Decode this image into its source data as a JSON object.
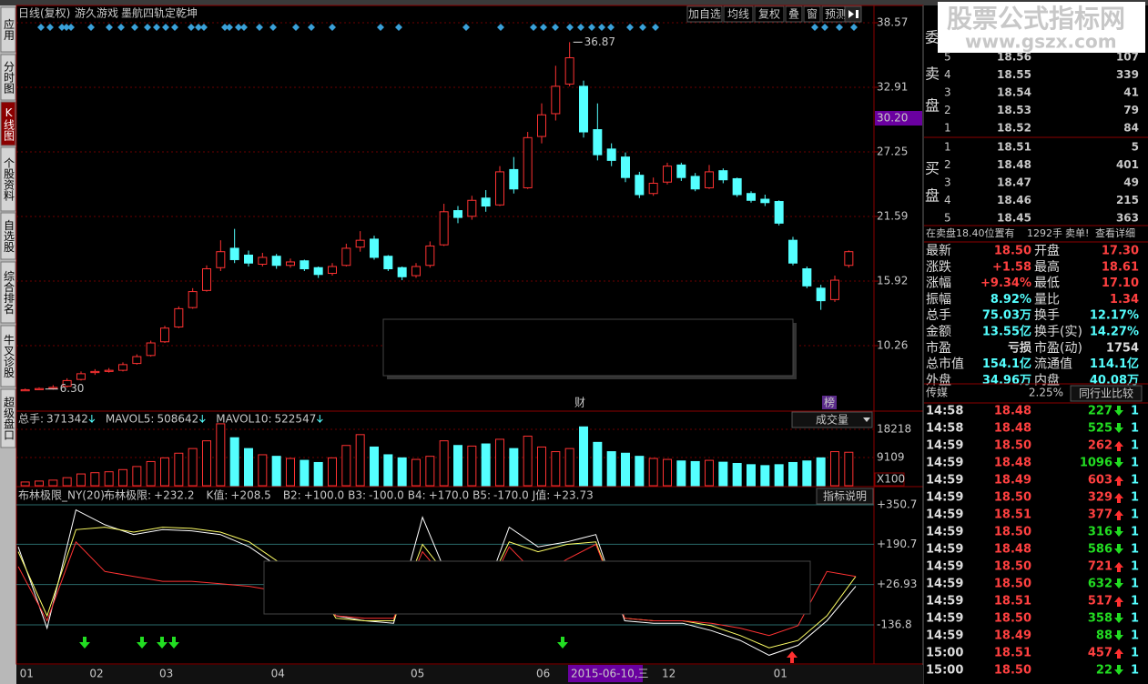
{
  "tabs": [
    "应用",
    "分时图",
    "K线图",
    "个股资料",
    "自选股",
    "综合排名",
    "牛叉诊股",
    "超级盘口"
  ],
  "header": {
    "mode": "日线(复权)",
    "stock": "游久游戏",
    "formula": "墨航四轨定乾坤",
    "buttons": [
      "加自选",
      "均线",
      "复权",
      "叠",
      "窗",
      "预测"
    ]
  },
  "chart_data": [
    {
      "type": "candlestick",
      "categories": [
        "01",
        null,
        null,
        null,
        null,
        "02",
        null,
        null,
        null,
        null,
        "03",
        null,
        null,
        null,
        null,
        null,
        null,
        null,
        "04",
        null,
        null,
        null,
        null,
        null,
        null,
        null,
        null,
        null,
        "05",
        null,
        null,
        null,
        null,
        null,
        null,
        null,
        null,
        "06",
        null,
        null,
        null,
        null,
        null,
        null,
        null,
        null,
        "12",
        null,
        null,
        null,
        null,
        null,
        null,
        null,
        "01",
        null,
        null,
        null,
        null,
        null
      ],
      "open": [
        6.3,
        6.4,
        6.5,
        6.7,
        7.3,
        7.9,
        8.0,
        8.1,
        8.7,
        9.4,
        10.6,
        11.9,
        13.6,
        15.1,
        17.1,
        18.8,
        18.2,
        17.4,
        18.1,
        17.3,
        17.7,
        17.1,
        16.6,
        17.3,
        18.9,
        19.6,
        18.1,
        17.1,
        16.4,
        17.3,
        19.1,
        22.1,
        21.6,
        23.2,
        22.6,
        25.7,
        24.1,
        28.6,
        30.6,
        33.2,
        33.0,
        29.2,
        27.5,
        26.8,
        25.2,
        23.6,
        24.6,
        26.1,
        25.1,
        24.1,
        25.6,
        24.9,
        23.6,
        23.1,
        22.9,
        19.5,
        17.0,
        15.3,
        14.3,
        17.3
      ],
      "high": [
        6.5,
        6.6,
        6.8,
        7.4,
        8.0,
        8.2,
        8.3,
        8.8,
        9.5,
        10.7,
        12.0,
        13.7,
        15.3,
        17.3,
        19.5,
        20.5,
        18.6,
        18.4,
        18.3,
        17.9,
        17.8,
        17.2,
        17.5,
        19.2,
        20.3,
        19.9,
        18.2,
        17.2,
        17.5,
        19.4,
        22.7,
        22.5,
        23.4,
        23.9,
        26.0,
        26.8,
        29.0,
        31.5,
        34.8,
        36.87,
        33.5,
        31.5,
        28.0,
        27.2,
        25.5,
        25.0,
        26.3,
        26.3,
        25.4,
        26.1,
        25.8,
        25.0,
        23.8,
        23.5,
        23.0,
        19.8,
        17.2,
        15.6,
        16.4,
        18.61
      ],
      "low": [
        6.3,
        6.4,
        6.4,
        6.6,
        7.2,
        7.7,
        7.9,
        8.0,
        8.6,
        9.3,
        10.5,
        11.8,
        13.5,
        15.0,
        16.8,
        17.5,
        17.2,
        17.2,
        17.0,
        17.1,
        16.8,
        16.2,
        16.4,
        17.2,
        18.5,
        17.8,
        16.8,
        16.0,
        16.2,
        17.1,
        19.0,
        21.0,
        21.3,
        22.0,
        22.5,
        23.6,
        24.0,
        28.0,
        30.0,
        33.0,
        28.5,
        26.5,
        26.0,
        24.6,
        23.2,
        23.4,
        24.4,
        24.7,
        23.8,
        24.0,
        24.5,
        23.3,
        22.8,
        22.5,
        20.8,
        17.3,
        15.3,
        13.4,
        14.1,
        17.1
      ],
      "close": [
        6.4,
        6.5,
        6.6,
        7.2,
        7.8,
        8.0,
        8.1,
        8.6,
        9.3,
        10.5,
        11.8,
        13.5,
        15.0,
        17.0,
        18.5,
        17.8,
        17.5,
        18.0,
        17.3,
        17.6,
        17.0,
        16.5,
        17.2,
        18.8,
        19.5,
        18.0,
        17.0,
        16.3,
        17.2,
        19.0,
        22.0,
        21.5,
        23.0,
        22.5,
        25.5,
        24.0,
        28.5,
        30.5,
        33.0,
        35.5,
        29.0,
        27.0,
        26.5,
        25.0,
        23.5,
        24.5,
        26.0,
        25.0,
        24.0,
        25.5,
        24.8,
        23.5,
        23.0,
        22.8,
        21.0,
        17.5,
        15.5,
        14.2,
        16.0,
        18.5
      ],
      "ylim": [
        4.68,
        39.13
      ],
      "yticks": [
        38.57,
        32.91,
        27.25,
        21.59,
        15.92,
        10.26
      ],
      "max_label": {
        "value": 36.87,
        "label": "36.87"
      },
      "min_label": {
        "value": 6.3,
        "label": "6.30"
      },
      "cursor_price": {
        "value": 30.2,
        "label": "30.20"
      },
      "cursor_date": "2015-06-10,三",
      "events": [
        "财",
        "榜"
      ],
      "up_color": "#ff3232",
      "down_color": "#54ffff"
    },
    {
      "type": "bar",
      "title": "成交量",
      "readouts": [
        {
          "label": "总手:",
          "value": "371342"
        },
        {
          "label": "MAVOL5:",
          "value": "508642"
        },
        {
          "label": "MAVOL10:",
          "value": "522547"
        }
      ],
      "values": [
        1200,
        1500,
        1800,
        2600,
        3800,
        4200,
        4500,
        5200,
        6200,
        7800,
        9000,
        10500,
        12000,
        14500,
        20000,
        15500,
        12000,
        10000,
        9500,
        8800,
        8200,
        7500,
        9000,
        13000,
        16500,
        12500,
        10000,
        9000,
        8500,
        9500,
        14500,
        13000,
        12800,
        13500,
        15000,
        12000,
        16000,
        12500,
        11000,
        12000,
        19000,
        14000,
        11000,
        10500,
        9500,
        8800,
        8500,
        8000,
        7800,
        8200,
        7600,
        7200,
        6800,
        6500,
        6800,
        7500,
        8000,
        9000,
        11000,
        10800
      ],
      "ylim": [
        0,
        21150
      ],
      "yticks": [
        18218,
        9109
      ],
      "unit": "X100"
    },
    {
      "type": "line",
      "title": "布林极限_NY(20)",
      "button": "指标说明",
      "readouts": [
        {
          "label": "布林极限:",
          "value": "+232.2",
          "color": "#ffffff"
        },
        {
          "label": "K值:",
          "value": "+208.5",
          "color": "#ffff00"
        },
        {
          "label": "B2:",
          "value": "+100.0",
          "color": "#a0a0a0"
        },
        {
          "label": "B3:",
          "value": "-100.0",
          "color": "#a0a0a0"
        },
        {
          "label": "B4:",
          "value": "+170.0",
          "color": "#40a0a0"
        },
        {
          "label": "B5:",
          "value": "-170.0",
          "color": "#40a0a0"
        },
        {
          "label": "J值:",
          "value": "+23.73",
          "color": "#ff4040"
        }
      ],
      "series": [
        {
          "color": "#ffffff",
          "values": [
            180,
            -150,
            330,
            270,
            230,
            250,
            245,
            230,
            180,
            100,
            60,
            -100,
            -120,
            -130,
            300,
            20,
            -60,
            260,
            180,
            200,
            230,
            -120,
            -130,
            -130,
            -160,
            -200,
            -260,
            -220,
            -120,
            20
          ]
        },
        {
          "color": "#ffff66",
          "values": [
            160,
            -100,
            250,
            260,
            240,
            260,
            255,
            240,
            200,
            120,
            80,
            -110,
            -120,
            -120,
            190,
            40,
            -40,
            200,
            160,
            190,
            200,
            -110,
            -120,
            -120,
            -140,
            -180,
            -230,
            -200,
            -100,
            60
          ]
        },
        {
          "color": "#ff3333",
          "values": [
            100,
            -120,
            200,
            80,
            60,
            40,
            40,
            30,
            20,
            0,
            10,
            -100,
            -110,
            -110,
            160,
            20,
            -60,
            180,
            60,
            130,
            190,
            -110,
            -120,
            -120,
            -130,
            -150,
            -180,
            -140,
            80,
            60
          ]
        }
      ],
      "ylim": [
        -295.6,
        376.6
      ],
      "yticks": [
        {
          "value": 350.7,
          "label": "+350.7"
        },
        {
          "value": 190.7,
          "label": "+190.7"
        },
        {
          "value": 26.93,
          "label": "+26.93"
        },
        -136.8
      ]
    }
  ],
  "watermark": {
    "title": "股票公式指标网",
    "url": "www.gszx.com"
  },
  "orderbook": {
    "sell_label": [
      "委",
      "卖",
      "盘"
    ],
    "buy_label": [
      "买",
      "盘"
    ],
    "sells": [
      {
        "level": "5",
        "price": "18.56",
        "vol": "107"
      },
      {
        "level": "4",
        "price": "18.55",
        "vol": "339"
      },
      {
        "level": "3",
        "price": "18.54",
        "vol": "41"
      },
      {
        "level": "2",
        "price": "18.53",
        "vol": "79"
      },
      {
        "level": "1",
        "price": "18.52",
        "vol": "84"
      }
    ],
    "buys": [
      {
        "level": "1",
        "price": "18.51",
        "vol": "5"
      },
      {
        "level": "2",
        "price": "18.48",
        "vol": "401"
      },
      {
        "level": "3",
        "price": "18.47",
        "vol": "49"
      },
      {
        "level": "4",
        "price": "18.46",
        "vol": "215"
      },
      {
        "level": "5",
        "price": "18.45",
        "vol": "363"
      }
    ],
    "notice": {
      "text": "在卖盘18.40位置有",
      "qty": "1292手",
      "alert": "卖单!",
      "link": "查看详细"
    }
  },
  "stats": [
    [
      "最新",
      "18.50",
      "开盘",
      "17.30"
    ],
    [
      "涨跌",
      "+1.58",
      "最高",
      "18.61"
    ],
    [
      "涨幅",
      "+9.34%",
      "最低",
      "17.10"
    ],
    [
      "振幅",
      "8.92%",
      "量比",
      "1.34"
    ],
    [
      "总手",
      "75.03万",
      "换手",
      "12.17%"
    ],
    [
      "金额",
      "13.55亿",
      "换手(实)",
      "14.27%"
    ],
    [
      "市盈",
      "亏损",
      "市盈(动)",
      "1754"
    ],
    [
      "总市值",
      "154.1亿",
      "流通值",
      "114.1亿"
    ],
    [
      "外盘",
      "34.96万",
      "内盘",
      "40.08万"
    ]
  ],
  "sector": {
    "name": "传媒",
    "change": "2.25%",
    "button": "同行业比较"
  },
  "ticks": [
    {
      "time": "14:58",
      "price": "18.48",
      "vol": "227",
      "dir": "down",
      "count": "1"
    },
    {
      "time": "14:58",
      "price": "18.48",
      "vol": "525",
      "dir": "down",
      "count": "1"
    },
    {
      "time": "14:59",
      "price": "18.50",
      "vol": "262",
      "dir": "up",
      "count": "1"
    },
    {
      "time": "14:59",
      "price": "18.48",
      "vol": "1096",
      "dir": "down",
      "count": "1"
    },
    {
      "time": "14:59",
      "price": "18.49",
      "vol": "603",
      "dir": "up",
      "count": "1"
    },
    {
      "time": "14:59",
      "price": "18.50",
      "vol": "329",
      "dir": "up",
      "count": "1"
    },
    {
      "time": "14:59",
      "price": "18.51",
      "vol": "377",
      "dir": "up",
      "count": "1"
    },
    {
      "time": "14:59",
      "price": "18.50",
      "vol": "316",
      "dir": "down",
      "count": "1"
    },
    {
      "time": "14:59",
      "price": "18.48",
      "vol": "586",
      "dir": "down",
      "count": "1"
    },
    {
      "time": "14:59",
      "price": "18.50",
      "vol": "721",
      "dir": "up",
      "count": "1"
    },
    {
      "time": "14:59",
      "price": "18.50",
      "vol": "632",
      "dir": "down",
      "count": "1"
    },
    {
      "time": "14:59",
      "price": "18.51",
      "vol": "517",
      "dir": "up",
      "count": "1"
    },
    {
      "time": "14:59",
      "price": "18.50",
      "vol": "358",
      "dir": "down",
      "count": "1"
    },
    {
      "time": "14:59",
      "price": "18.49",
      "vol": "88",
      "dir": "down",
      "count": "1"
    },
    {
      "time": "15:00",
      "price": "18.51",
      "vol": "457",
      "dir": "up",
      "count": "1"
    },
    {
      "time": "15:00",
      "price": "18.50",
      "vol": "22",
      "dir": "down",
      "count": "1"
    }
  ]
}
